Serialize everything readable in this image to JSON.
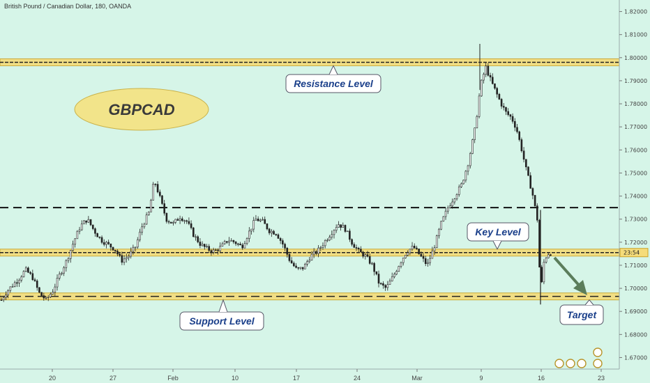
{
  "header": {
    "title": "British Pound / Canadian Dollar, 180, OANDA"
  },
  "badge": {
    "text": "GBPCAD"
  },
  "price_tag": {
    "text": "23:54"
  },
  "callouts": {
    "resistance": "Resistance Level",
    "key": "Key Level",
    "support": "Support Level",
    "target": "Target"
  },
  "colors": {
    "background": "#d6f5e8",
    "zone_fill": "#f5dc7a",
    "zone_border": "#c9a227",
    "candle": "#222222",
    "callout_text": "#1a3f8a",
    "arrow": "#5b7d5b"
  },
  "chart_data": {
    "type": "candlestick",
    "symbol": "GBPCAD",
    "ylim": [
      1.665,
      1.825
    ],
    "y_ticks": [
      "1.82000",
      "1.81000",
      "1.80000",
      "1.79000",
      "1.78000",
      "1.77000",
      "1.76000",
      "1.75000",
      "1.74000",
      "1.73000",
      "1.72000",
      "1.71000",
      "1.70000",
      "1.69000",
      "1.68000",
      "1.67000"
    ],
    "x_ticks": [
      "20",
      "27",
      "Feb",
      "10",
      "17",
      "24",
      "Mar",
      "9",
      "16",
      "23"
    ],
    "levels": {
      "resistance": 1.798,
      "key_dashed": 1.735,
      "key_zone": 1.7155,
      "support": 1.6965
    },
    "target_price": 1.6965,
    "last_price": 1.7155,
    "path": [
      [
        0,
        1.695
      ],
      [
        6,
        1.6985
      ],
      [
        12,
        1.701
      ],
      [
        20,
        1.704
      ],
      [
        28,
        1.708
      ],
      [
        36,
        1.705
      ],
      [
        44,
        1.698
      ],
      [
        52,
        1.695
      ],
      [
        60,
        1.699
      ],
      [
        68,
        1.706
      ],
      [
        76,
        1.712
      ],
      [
        84,
        1.72
      ],
      [
        92,
        1.727
      ],
      [
        100,
        1.73
      ],
      [
        108,
        1.725
      ],
      [
        116,
        1.721
      ],
      [
        124,
        1.719
      ],
      [
        132,
        1.717
      ],
      [
        140,
        1.712
      ],
      [
        148,
        1.714
      ],
      [
        156,
        1.718
      ],
      [
        164,
        1.727
      ],
      [
        172,
        1.733
      ],
      [
        178,
        1.747
      ],
      [
        184,
        1.74
      ],
      [
        192,
        1.73
      ],
      [
        200,
        1.728
      ],
      [
        208,
        1.731
      ],
      [
        216,
        1.729
      ],
      [
        224,
        1.723
      ],
      [
        232,
        1.719
      ],
      [
        240,
        1.717
      ],
      [
        248,
        1.716
      ],
      [
        256,
        1.718
      ],
      [
        264,
        1.721
      ],
      [
        272,
        1.72
      ],
      [
        280,
        1.718
      ],
      [
        288,
        1.724
      ],
      [
        296,
        1.73
      ],
      [
        304,
        1.729
      ],
      [
        312,
        1.725
      ],
      [
        320,
        1.724
      ],
      [
        328,
        1.719
      ],
      [
        336,
        1.712
      ],
      [
        344,
        1.708
      ],
      [
        352,
        1.709
      ],
      [
        360,
        1.714
      ],
      [
        368,
        1.716
      ],
      [
        376,
        1.72
      ],
      [
        384,
        1.724
      ],
      [
        392,
        1.728
      ],
      [
        400,
        1.726
      ],
      [
        408,
        1.72
      ],
      [
        416,
        1.716
      ],
      [
        424,
        1.714
      ],
      [
        432,
        1.71
      ],
      [
        440,
        1.702
      ],
      [
        448,
        1.7
      ],
      [
        456,
        1.705
      ],
      [
        464,
        1.711
      ],
      [
        472,
        1.716
      ],
      [
        480,
        1.718
      ],
      [
        488,
        1.714
      ],
      [
        496,
        1.71
      ],
      [
        504,
        1.718
      ],
      [
        512,
        1.728
      ],
      [
        520,
        1.735
      ],
      [
        528,
        1.74
      ],
      [
        536,
        1.745
      ],
      [
        544,
        1.755
      ],
      [
        552,
        1.77
      ],
      [
        558,
        1.788
      ],
      [
        564,
        1.796
      ],
      [
        570,
        1.79
      ],
      [
        576,
        1.785
      ],
      [
        582,
        1.78
      ],
      [
        588,
        1.776
      ],
      [
        594,
        1.774
      ],
      [
        600,
        1.769
      ],
      [
        606,
        1.76
      ],
      [
        612,
        1.75
      ],
      [
        618,
        1.742
      ],
      [
        624,
        1.73
      ],
      [
        628,
        1.698
      ],
      [
        632,
        1.712
      ],
      [
        636,
        1.715
      ],
      [
        640,
        1.7155
      ]
    ]
  }
}
